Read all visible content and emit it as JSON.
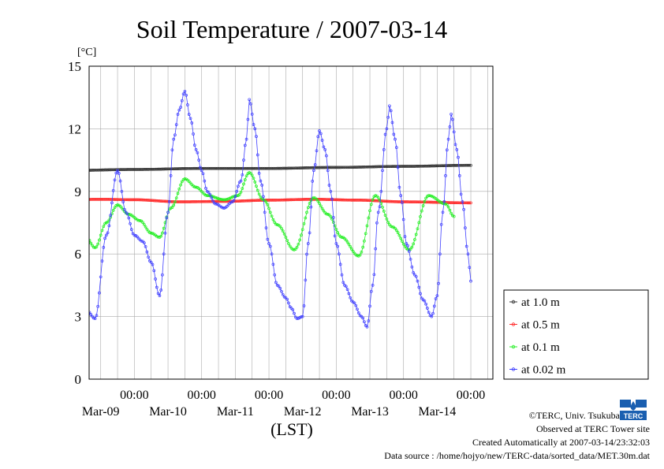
{
  "chart_data": {
    "type": "line",
    "title": "Soil Temperature / 2007-03-14",
    "ylabel": "[°C]",
    "xlabel": "(LST)",
    "ylim": [
      0,
      15
    ],
    "yticks": [
      0,
      3,
      6,
      9,
      12,
      15
    ],
    "grid": true,
    "legend_position": "bottom-right",
    "x_hours_range": [
      0,
      144
    ],
    "x_tick_labels": [
      {
        "top": "00:00",
        "bottom": "Mar-09"
      },
      {
        "top": "00:00",
        "bottom": "Mar-10"
      },
      {
        "top": "00:00",
        "bottom": "Mar-11"
      },
      {
        "top": "00:00",
        "bottom": "Mar-12"
      },
      {
        "top": "00:00",
        "bottom": "Mar-13"
      },
      {
        "top": "00:00",
        "bottom": "Mar-14"
      }
    ],
    "series": [
      {
        "name": "at 1.0 m",
        "color": "#333333",
        "points": [
          [
            0,
            10.0
          ],
          [
            24,
            10.05
          ],
          [
            48,
            10.1
          ],
          [
            72,
            10.1
          ],
          [
            96,
            10.15
          ],
          [
            120,
            10.2
          ],
          [
            144,
            10.25
          ]
        ]
      },
      {
        "name": "at 0.5 m",
        "color": "#ff2a2a",
        "points": [
          [
            0,
            8.6
          ],
          [
            12,
            8.62
          ],
          [
            24,
            8.6
          ],
          [
            40,
            8.5
          ],
          [
            56,
            8.52
          ],
          [
            72,
            8.58
          ],
          [
            88,
            8.62
          ],
          [
            104,
            8.58
          ],
          [
            120,
            8.5
          ],
          [
            144,
            8.45
          ]
        ]
      },
      {
        "name": "at 0.1 m",
        "color": "#22ee22",
        "points": [
          [
            0,
            8.3
          ],
          [
            6,
            7.0
          ],
          [
            10,
            6.3
          ],
          [
            14,
            7.5
          ],
          [
            18,
            8.35
          ],
          [
            22,
            7.9
          ],
          [
            26,
            7.6
          ],
          [
            30,
            7.0
          ],
          [
            33,
            6.8
          ],
          [
            37,
            8.2
          ],
          [
            42,
            9.6
          ],
          [
            46,
            9.2
          ],
          [
            50,
            8.8
          ],
          [
            56,
            8.6
          ],
          [
            61,
            8.8
          ],
          [
            65,
            9.9
          ],
          [
            70,
            8.6
          ],
          [
            75,
            7.4
          ],
          [
            81,
            6.2
          ],
          [
            88,
            8.7
          ],
          [
            93,
            7.9
          ],
          [
            98,
            6.8
          ],
          [
            104,
            5.9
          ],
          [
            110,
            8.8
          ],
          [
            116,
            7.3
          ],
          [
            122,
            6.2
          ],
          [
            129,
            8.8
          ],
          [
            135,
            8.4
          ],
          [
            138,
            7.8
          ]
        ]
      },
      {
        "name": "at 0.02 m",
        "color": "#3f3fff",
        "points": [
          [
            0,
            5.1
          ],
          [
            4,
            4.0
          ],
          [
            7,
            3.3
          ],
          [
            10,
            2.9
          ],
          [
            14,
            6.9
          ],
          [
            18,
            10.0
          ],
          [
            21,
            8.0
          ],
          [
            24,
            6.9
          ],
          [
            27,
            6.6
          ],
          [
            30,
            5.6
          ],
          [
            33,
            4.0
          ],
          [
            36,
            8.0
          ],
          [
            38,
            11.5
          ],
          [
            40,
            12.9
          ],
          [
            42,
            13.8
          ],
          [
            44,
            12.5
          ],
          [
            46,
            11.0
          ],
          [
            48,
            10.0
          ],
          [
            50,
            9.0
          ],
          [
            53,
            8.4
          ],
          [
            56,
            8.2
          ],
          [
            59,
            8.5
          ],
          [
            62,
            9.5
          ],
          [
            64,
            11.5
          ],
          [
            65,
            13.4
          ],
          [
            67,
            12.0
          ],
          [
            69,
            9.5
          ],
          [
            72,
            6.5
          ],
          [
            75,
            4.5
          ],
          [
            78,
            3.9
          ],
          [
            80,
            3.4
          ],
          [
            82,
            2.9
          ],
          [
            84,
            3.0
          ],
          [
            86,
            6.5
          ],
          [
            88,
            10.0
          ],
          [
            90,
            11.9
          ],
          [
            92,
            11.0
          ],
          [
            94,
            9.0
          ],
          [
            96,
            6.5
          ],
          [
            99,
            4.5
          ],
          [
            102,
            3.7
          ],
          [
            105,
            3.0
          ],
          [
            107,
            2.5
          ],
          [
            109,
            4.5
          ],
          [
            111,
            8.0
          ],
          [
            114,
            12.0
          ],
          [
            115,
            13.1
          ],
          [
            117,
            11.5
          ],
          [
            119,
            8.8
          ],
          [
            121,
            6.5
          ],
          [
            124,
            5.0
          ],
          [
            127,
            3.8
          ],
          [
            130,
            3.0
          ],
          [
            132,
            4.0
          ],
          [
            134,
            8.0
          ],
          [
            136,
            11.5
          ],
          [
            137,
            12.7
          ],
          [
            139,
            11.0
          ],
          [
            141,
            8.5
          ],
          [
            143,
            6.0
          ],
          [
            144,
            4.7
          ]
        ]
      }
    ]
  },
  "footer": {
    "copyright": "©TERC, Univ. Tsukuba",
    "observed": "Observed at TERC Tower site",
    "created": "Created Automatically at 2007-03-14/23:32:03",
    "source": "Data source : /home/hojyo/new/TERC-data/sorted_data/MET.30m.dat",
    "logo_text": "TERC"
  }
}
